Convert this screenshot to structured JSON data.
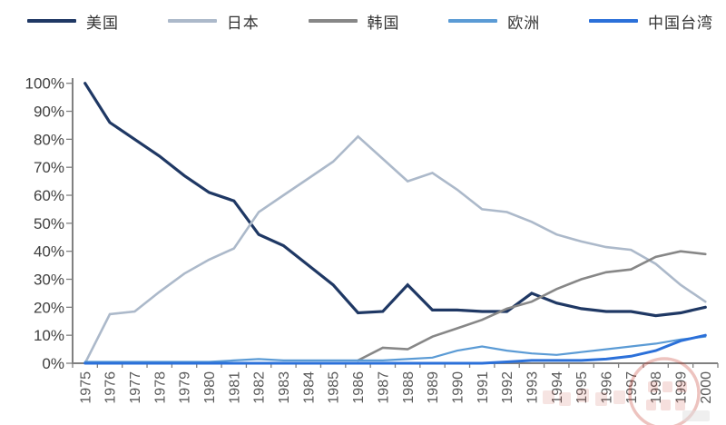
{
  "chart_data": {
    "type": "line",
    "title": "",
    "xlabel": "",
    "ylabel": "",
    "ylim": [
      0,
      100
    ],
    "y_tick_step": 10,
    "y_tick_suffix": "%",
    "grid": false,
    "legend_position": "top",
    "x": [
      1975,
      1976,
      1977,
      1978,
      1979,
      1980,
      1981,
      1982,
      1983,
      1984,
      1985,
      1986,
      1987,
      1988,
      1989,
      1990,
      1991,
      1992,
      1993,
      1994,
      1995,
      1996,
      1997,
      1998,
      1999,
      2000
    ],
    "series": [
      {
        "name": "美国",
        "color": "#1F3864",
        "width": 3.2,
        "values": [
          100,
          86,
          80,
          74,
          67,
          61,
          58,
          46,
          42,
          35,
          28,
          18,
          18.5,
          28,
          19,
          19,
          18.5,
          18.5,
          25,
          21.5,
          19.5,
          18.5,
          18.5,
          17,
          18,
          20
        ]
      },
      {
        "name": "日本",
        "color": "#ACB9CA",
        "width": 2.6,
        "values": [
          0,
          17.5,
          18.5,
          25.5,
          32,
          37,
          41,
          54,
          60,
          66,
          72,
          81,
          73,
          65,
          68,
          62,
          55,
          54,
          50.5,
          46,
          43.5,
          41.5,
          40.5,
          35.5,
          28,
          22
        ]
      },
      {
        "name": "韩国",
        "color": "#878787",
        "width": 2.6,
        "values": [
          null,
          null,
          null,
          null,
          null,
          null,
          null,
          null,
          null,
          null,
          null,
          1,
          5.5,
          5,
          9.5,
          12.5,
          15.5,
          19.5,
          22,
          26.5,
          30,
          32.5,
          33.5,
          38,
          40,
          39
        ]
      },
      {
        "name": "欧洲",
        "color": "#5B9BD5",
        "width": 2.2,
        "values": [
          0.5,
          0.5,
          0.5,
          0.5,
          0.5,
          0.5,
          1,
          1.5,
          1,
          1,
          1,
          1,
          1,
          1.5,
          2,
          4.5,
          6,
          4.5,
          3.5,
          3,
          4,
          5,
          6,
          7,
          8.5,
          9.5
        ]
      },
      {
        "name": "中国台湾",
        "color": "#2B70D9",
        "width": 3.0,
        "values": [
          0,
          0,
          0,
          0,
          0,
          0,
          0,
          0,
          0,
          0,
          0,
          0,
          0,
          0,
          0,
          0,
          0,
          0.5,
          1,
          1,
          1,
          1.5,
          2.5,
          4.5,
          8,
          10
        ]
      }
    ]
  },
  "axis": {
    "color": "#808080",
    "y_ticks": [
      "0%",
      "10%",
      "20%",
      "30%",
      "40%",
      "50%",
      "60%",
      "70%",
      "80%",
      "90%",
      "100%"
    ]
  },
  "watermark": {
    "note": "faint red seal stamp over lower-right year labels (illegible)",
    "color": "#C43C30",
    "opacity": 0.3
  }
}
